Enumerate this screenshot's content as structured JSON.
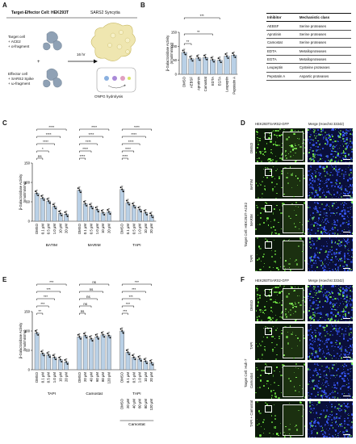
{
  "panels": {
    "A": "A",
    "B": "B",
    "C": "C",
    "D": "D",
    "E": "E",
    "F": "F"
  },
  "panelA": {
    "title": "Target-Effector Cell: HEK293T",
    "syncytia": "SARS2 Syncytia",
    "target_line1": "Target cell",
    "target_line2": "+ ACE2",
    "target_line3": "+ α-fragment",
    "effector_line1": "Effector cell",
    "effector_line2": "+ SARS2 Spike",
    "effector_line3": "+ ω-fragment",
    "time": "16 hr",
    "readout": "ONPG hydrolysis",
    "plus": "+"
  },
  "table": {
    "headers": [
      "Inhibitor",
      "Mechanistic class"
    ],
    "rows": [
      [
        "AEBSF",
        "Serine proteases"
      ],
      [
        "Aprotinin",
        "Serine proteases"
      ],
      [
        "Camostat",
        "Serine proteases"
      ],
      [
        "EDTA",
        "Metalloproteases"
      ],
      [
        "EGTA",
        "Metalloproteases"
      ],
      [
        "Leupeptin",
        "Cysteine proteases"
      ],
      [
        "Pepstatin A",
        "Aspartic proteases"
      ]
    ]
  },
  "ylabel_line1": "β-Galactosidase Activity",
  "ylabel_line2": "(nmol/min/mg)",
  "chart_data": [
    {
      "panel": "B",
      "type": "bar",
      "ylim": [
        0,
        150
      ],
      "yticks": [
        0,
        50,
        100,
        150
      ],
      "categories": [
        "DMSO",
        "AEBSF",
        "Aprotinin",
        "Camostat",
        "EDTA",
        "EGTA",
        "Leupeptin",
        "Pepstatin A"
      ],
      "values": [
        78,
        55,
        58,
        60,
        52,
        50,
        65,
        68
      ],
      "colors": [
        "#b9d0e6",
        "#b9d0e6",
        "#b9d0e6",
        "#b9d0e6",
        "#b9d0e6",
        "#b9d0e6",
        "#b9d0e6",
        "#b9d0e6"
      ],
      "sig": [
        {
          "from": 0,
          "to": 1,
          "label": "**"
        },
        {
          "from": 0,
          "to": 4,
          "label": "**"
        },
        {
          "from": 0,
          "to": 5,
          "label": "***"
        }
      ]
    },
    {
      "panel": "C",
      "type": "bar",
      "ylim": [
        0,
        150
      ],
      "yticks": [
        0,
        50,
        100,
        150
      ],
      "groups": [
        {
          "name": "BATIM",
          "categories": [
            "DMSO",
            "0.1 μM",
            "0.5 μM",
            "1.0 μM",
            "10 μM",
            "20 μM"
          ],
          "values": [
            72,
            60,
            52,
            38,
            20,
            18
          ]
        },
        {
          "name": "MARIM",
          "categories": [
            "DMSO",
            "0.1 μM",
            "0.5 μM",
            "1.0 μM",
            "10 μM",
            "20 μM"
          ],
          "values": [
            80,
            45,
            38,
            30,
            22,
            24
          ]
        },
        {
          "name": "TAPI",
          "categories": [
            "DMSO",
            "0.1 μM",
            "0.5 μM",
            "1.0 μM",
            "10 μM",
            "20 μM"
          ],
          "values": [
            82,
            48,
            40,
            30,
            22,
            15
          ]
        }
      ],
      "sig_labels": [
        [
          "ns",
          "*",
          "****",
          "****",
          "****"
        ],
        [
          "****",
          "****",
          "****",
          "****",
          "****"
        ],
        [
          "****",
          "****",
          "****",
          "****",
          "****"
        ]
      ]
    },
    {
      "panel": "E",
      "type": "bar",
      "ylim": [
        0,
        150
      ],
      "yticks": [
        0,
        50,
        100,
        150
      ],
      "groups": [
        {
          "name": "TAPI",
          "categories": [
            "DMSO",
            "0.1 μM",
            "0.5 μM",
            "1.0 μM",
            "10 μM",
            "20 μM"
          ],
          "values": [
            95,
            42,
            38,
            32,
            26,
            20
          ]
        },
        {
          "name": "Camostat",
          "categories": [
            "DMSO",
            "20 μM",
            "40 μM",
            "60 μM",
            "80 μM",
            "120 μM"
          ],
          "values": [
            85,
            88,
            80,
            85,
            90,
            88
          ]
        },
        {
          "name": "TAPI",
          "categories": [
            "DMSO",
            "0.1 μM",
            "0.5 μM",
            "1.0 μM",
            "10 μM",
            "20 μM"
          ],
          "values": [
            100,
            45,
            32,
            28,
            22,
            18
          ]
        }
      ],
      "sig_labels": [
        [
          "**",
          "***",
          "***",
          "***",
          "***"
        ],
        [
          "ns",
          "ns",
          "ns",
          "ns",
          "ns"
        ],
        [
          "***",
          "***",
          "***",
          "***",
          "***"
        ]
      ],
      "camostat_sub": {
        "categories": [
          "DMSO",
          "20 μM",
          "40 μM",
          "60 μM",
          "80 μM",
          "120 μM"
        ],
        "name": "Camostat"
      }
    }
  ],
  "panelD": {
    "col1": "HEK293TSARS2-GFP",
    "col2": "Merge (Hoechst 33342)",
    "rows": [
      "DMSO",
      "BATIM",
      "MARIM",
      "TAPI"
    ],
    "side": "Target Cell: HEK293T-ACE2"
  },
  "panelF": {
    "col1": "HEK293TSARS2-GFP",
    "col2": "Merge (Hoechst 33342)",
    "rows": [
      "DMSO",
      "TAPI",
      "Camostat",
      "TAPI + Camostat"
    ],
    "side": "Target Cell: Huh-7"
  }
}
